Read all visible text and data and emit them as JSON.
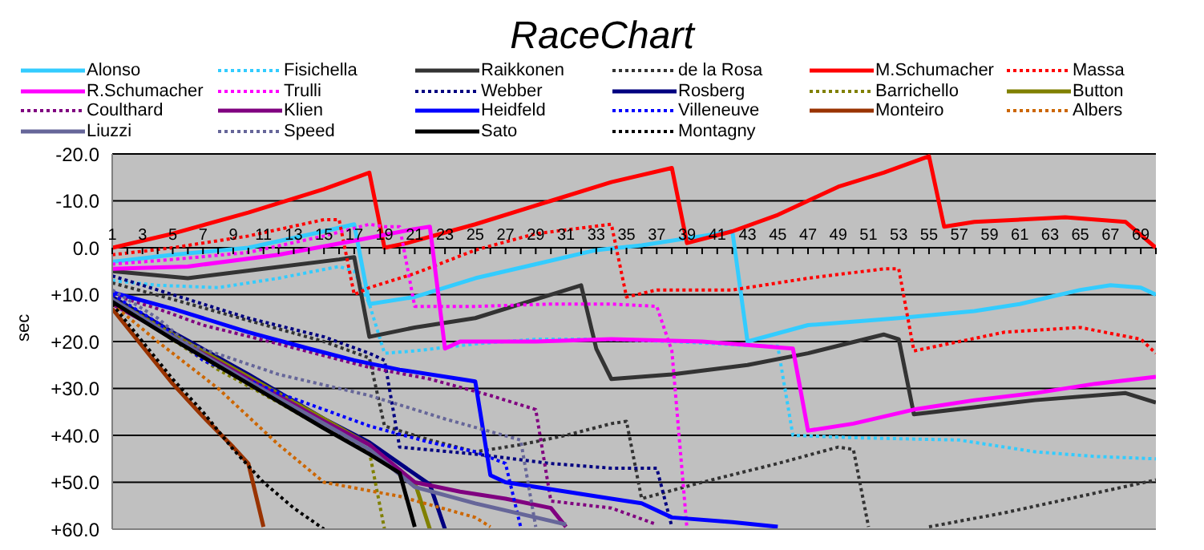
{
  "chart_data": {
    "type": "line",
    "title": "RaceChart",
    "ylabel": "sec",
    "legend": "top",
    "grid": "y",
    "tick_labels": "xy",
    "xlim": [
      1,
      70
    ],
    "xticks": [
      1,
      {
        "value": 2,
        "label": null
      },
      3,
      {
        "value": 4,
        "label": null
      },
      5,
      {
        "value": 6,
        "label": null
      },
      7,
      {
        "value": 8,
        "label": null
      },
      9,
      {
        "value": 10,
        "label": null
      },
      11,
      {
        "value": 12,
        "label": null
      },
      13,
      {
        "value": 14,
        "label": null
      },
      15,
      {
        "value": 16,
        "label": null
      },
      17,
      {
        "value": 18,
        "label": null
      },
      19,
      {
        "value": 20,
        "label": null
      },
      21,
      {
        "value": 22,
        "label": null
      },
      23,
      {
        "value": 24,
        "label": null
      },
      25,
      {
        "value": 26,
        "label": null
      },
      27,
      {
        "value": 28,
        "label": null
      },
      29,
      {
        "value": 30,
        "label": null
      },
      31,
      {
        "value": 32,
        "label": null
      },
      33,
      {
        "value": 34,
        "label": null
      },
      35,
      {
        "value": 36,
        "label": null
      },
      37,
      {
        "value": 38,
        "label": null
      },
      39,
      {
        "value": 40,
        "label": null
      },
      41,
      {
        "value": 42,
        "label": null
      },
      43,
      {
        "value": 44,
        "label": null
      },
      45,
      {
        "value": 46,
        "label": null
      },
      47,
      {
        "value": 48,
        "label": null
      },
      49,
      {
        "value": 50,
        "label": null
      },
      51,
      {
        "value": 52,
        "label": null
      },
      53,
      {
        "value": 54,
        "label": null
      },
      55,
      {
        "value": 56,
        "label": null
      },
      57,
      {
        "value": 58,
        "label": null
      },
      59,
      {
        "value": 60,
        "label": null
      },
      61,
      {
        "value": 62,
        "label": null
      },
      63,
      {
        "value": 64,
        "label": null
      },
      65,
      {
        "value": 66,
        "label": null
      },
      67,
      {
        "value": 68,
        "label": null
      },
      69,
      {
        "value": 70,
        "label": null
      }
    ],
    "ylim": [
      60,
      -20
    ],
    "yticks": [
      {
        "value": -20,
        "label": "-20.0"
      },
      {
        "value": -10,
        "label": "-10.0"
      },
      {
        "value": 0,
        "label": "0.0"
      },
      {
        "value": 10,
        "label": "+10.0"
      },
      {
        "value": 20,
        "label": "+20.0"
      },
      {
        "value": 30,
        "label": "+30.0"
      },
      {
        "value": 40,
        "label": "+40.0"
      },
      {
        "value": 50,
        "label": "+50.0"
      },
      {
        "value": 60,
        "label": "+60.0"
      }
    ],
    "series": [
      {
        "name": "Alonso",
        "color": "#33ccff",
        "line_style": "solid",
        "x": [
          1,
          5,
          10,
          15,
          17,
          18,
          21,
          25,
          29,
          33,
          36,
          40,
          42,
          43,
          47,
          53,
          58,
          61,
          65,
          67,
          69,
          70
        ],
        "values": [
          3,
          1.5,
          0,
          -3.5,
          -5,
          12,
          10.5,
          6.5,
          3.5,
          0.5,
          -0.5,
          -2.5,
          -3.5,
          20,
          16.5,
          15,
          13.5,
          12,
          9,
          8,
          8.5,
          10
        ]
      },
      {
        "name": "Fisichella",
        "color": "#33ccff",
        "line_style": "dotted",
        "x": [
          1,
          4,
          8,
          12,
          16,
          17,
          18,
          19,
          21,
          25,
          29,
          33,
          38,
          44,
          45,
          46,
          50,
          57,
          62,
          66,
          70
        ],
        "values": [
          7,
          8,
          8.5,
          6.5,
          4,
          5,
          12,
          22.5,
          22,
          20.5,
          19.5,
          19.5,
          20,
          21,
          21,
          40,
          40.5,
          41,
          43.5,
          44.5,
          45
        ]
      },
      {
        "name": "Raikkonen",
        "color": "#333333",
        "line_style": "solid",
        "x": [
          1,
          6,
          11,
          16,
          17,
          18,
          21,
          25,
          29,
          32,
          33,
          34,
          38,
          43,
          47,
          52,
          53,
          54,
          58,
          62,
          68,
          70
        ],
        "values": [
          5,
          6.5,
          4.5,
          2.5,
          2,
          19,
          17,
          15,
          11,
          8,
          21.5,
          28,
          27,
          25,
          22.5,
          18.5,
          19.5,
          35.5,
          34,
          32.5,
          31,
          33
        ]
      },
      {
        "name": "de la Rosa",
        "color": "#333333",
        "line_style": "dotted",
        "x": [
          1,
          5,
          10,
          15,
          18,
          19,
          22,
          25,
          28,
          31,
          34,
          35,
          36,
          40,
          45,
          49,
          50,
          51,
          52,
          53,
          54,
          55,
          60,
          65,
          70
        ],
        "values": [
          7.5,
          11,
          15.5,
          20,
          23.5,
          38,
          41,
          43.5,
          42,
          40,
          37.5,
          37,
          53.5,
          50,
          46,
          42.5,
          43,
          59.5,
          null,
          null,
          null,
          59.5,
          56.5,
          53,
          49.5
        ]
      },
      {
        "name": "M.Schumacher",
        "color": "#ff0000",
        "line_style": "solid",
        "x": [
          1,
          5,
          10,
          15,
          18,
          19,
          20.5,
          25,
          30,
          34,
          38,
          39,
          42,
          45,
          49,
          52,
          55,
          56,
          58,
          64,
          68,
          70
        ],
        "values": [
          0,
          -3,
          -7.5,
          -12.5,
          -16,
          0,
          -1,
          -5,
          -10,
          -14,
          -17,
          -1,
          -3.5,
          -7,
          -13,
          -16,
          -19.5,
          -4.5,
          -5.5,
          -6.5,
          -5.5,
          0
        ]
      },
      {
        "name": "Massa",
        "color": "#ff0000",
        "line_style": "dotted",
        "x": [
          1,
          5,
          10,
          15,
          16,
          17,
          18,
          21,
          25,
          29,
          34,
          35,
          37,
          42,
          47,
          52,
          53,
          54,
          57,
          60,
          65,
          69,
          70
        ],
        "values": [
          1.5,
          0,
          -2.5,
          -6,
          -6,
          10,
          8.5,
          5.5,
          0.5,
          -3,
          -5,
          10.5,
          9,
          9,
          6.5,
          4.5,
          4.5,
          22,
          20,
          18,
          17,
          19.5,
          22.5
        ]
      },
      {
        "name": "R.Schumacher",
        "color": "#ff00ff",
        "line_style": "solid",
        "x": [
          1,
          6,
          12,
          17,
          21,
          22,
          23,
          24,
          29,
          34,
          40,
          44,
          46,
          47,
          50,
          54,
          58,
          62,
          66,
          70
        ],
        "values": [
          4.5,
          4,
          1.5,
          -1.5,
          -4,
          -4.5,
          21.5,
          20,
          20,
          19.5,
          20,
          21,
          21.5,
          39,
          37.5,
          34.5,
          32.5,
          31,
          29,
          27.5
        ]
      },
      {
        "name": "Trulli",
        "color": "#ff00ff",
        "line_style": "dotted",
        "x": [
          1,
          5,
          10,
          15,
          18,
          19,
          20,
          21,
          25,
          30,
          34,
          37,
          38,
          39
        ],
        "values": [
          3.5,
          2.5,
          1,
          -2.5,
          -5,
          -4.5,
          -4.5,
          12.5,
          12.5,
          12,
          12,
          12.5,
          22,
          60
        ]
      },
      {
        "name": "Webber",
        "color": "#000080",
        "line_style": "dotted",
        "x": [
          1,
          5,
          10,
          15,
          18,
          19,
          20,
          25,
          30,
          34,
          37,
          38
        ],
        "values": [
          6,
          10,
          15,
          19,
          22.5,
          24,
          42.5,
          44,
          46,
          47,
          47,
          59.5
        ]
      },
      {
        "name": "Rosberg",
        "color": "#000080",
        "line_style": "solid",
        "x": [
          1,
          5,
          10,
          15,
          18,
          22,
          23
        ],
        "values": [
          10.5,
          18,
          27,
          36.5,
          41.5,
          50.5,
          60
        ]
      },
      {
        "name": "Barrichello",
        "color": "#808000",
        "line_style": "dotted",
        "x": [
          1,
          4,
          8,
          12,
          15,
          18,
          19
        ],
        "values": [
          10,
          17.5,
          26,
          33,
          38.5,
          43.5,
          60
        ]
      },
      {
        "name": "Button",
        "color": "#808000",
        "line_style": "solid",
        "x": [
          1,
          5,
          10,
          15,
          18,
          20,
          21,
          22
        ],
        "values": [
          11,
          18.5,
          27.5,
          36.5,
          42,
          48,
          50,
          60
        ]
      },
      {
        "name": "Coulthard",
        "color": "#800080",
        "line_style": "dotted",
        "x": [
          1,
          4,
          7,
          12,
          18,
          22,
          26,
          29,
          30,
          34,
          37
        ],
        "values": [
          10,
          13,
          16.5,
          20.5,
          25.5,
          28,
          31.5,
          34.5,
          54,
          55.5,
          59
        ]
      },
      {
        "name": "Klien",
        "color": "#800080",
        "line_style": "solid",
        "x": [
          1,
          5,
          10,
          15,
          18,
          21,
          24,
          27,
          30,
          31
        ],
        "values": [
          12,
          19,
          28,
          37,
          42,
          50,
          52,
          53.5,
          55.5,
          59.5
        ]
      },
      {
        "name": "Heidfeld",
        "color": "#0000ff",
        "line_style": "solid",
        "x": [
          1,
          5,
          10,
          14,
          17,
          20,
          24,
          25,
          26,
          27,
          30,
          34,
          36,
          38,
          42,
          45
        ],
        "values": [
          9.5,
          13,
          18,
          21.5,
          24,
          26,
          28,
          28.5,
          48.5,
          50,
          51.5,
          53.5,
          54.5,
          57.5,
          58.5,
          59.5
        ]
      },
      {
        "name": "Villeneuve",
        "color": "#0000ff",
        "line_style": "dotted",
        "x": [
          1,
          4,
          7,
          12,
          18,
          22,
          25,
          27,
          28
        ],
        "values": [
          10,
          16,
          24,
          31,
          38,
          41.5,
          43.5,
          46,
          59.5
        ]
      },
      {
        "name": "Monteiro",
        "color": "#993300",
        "line_style": "solid",
        "x": [
          1,
          3,
          5,
          7,
          9,
          10,
          11
        ],
        "values": [
          13,
          21,
          29,
          36,
          42.5,
          46,
          59.5
        ]
      },
      {
        "name": "Albers",
        "color": "#cc6600",
        "line_style": "dotted",
        "x": [
          1,
          4,
          8,
          12,
          15,
          20,
          25,
          26
        ],
        "values": [
          12,
          20,
          30,
          42,
          50,
          53,
          57.5,
          59.5
        ]
      },
      {
        "name": "Liuzzi",
        "color": "#666699",
        "line_style": "solid",
        "x": [
          1,
          5,
          10,
          15,
          18,
          21,
          25,
          29,
          31
        ],
        "values": [
          11,
          19,
          28.5,
          37.5,
          43,
          51,
          54.5,
          57.5,
          59
        ]
      },
      {
        "name": "Speed",
        "color": "#666699",
        "line_style": "dotted",
        "x": [
          1,
          4,
          6,
          12,
          18,
          23,
          28,
          29
        ],
        "values": [
          9,
          15,
          20.5,
          27,
          31.5,
          36.5,
          41,
          59.5
        ]
      },
      {
        "name": "Sato",
        "color": "#000000",
        "line_style": "solid",
        "x": [
          1,
          5,
          10,
          15,
          18,
          20,
          21
        ],
        "values": [
          11.5,
          19.5,
          29,
          38.5,
          44,
          48,
          59.5
        ]
      },
      {
        "name": "Montagny",
        "color": "#000000",
        "line_style": "dotted",
        "x": [
          1,
          3,
          5,
          7,
          9,
          11,
          13,
          15
        ],
        "values": [
          12,
          20,
          28,
          35,
          43,
          50,
          55.5,
          60
        ]
      }
    ]
  }
}
